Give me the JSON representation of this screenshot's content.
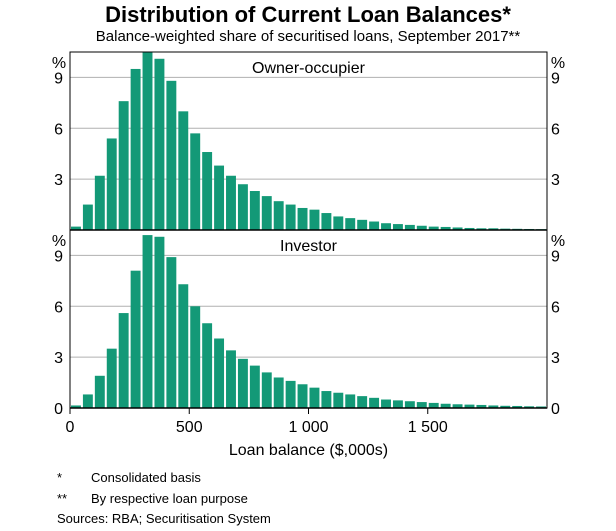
{
  "title": "Distribution of Current Loan Balances*",
  "subtitle": "Balance-weighted share of securitised loans, September 2017**",
  "chart_data": [
    {
      "type": "bar",
      "title": "Owner-occupier",
      "ylabel": "%",
      "xlabel": "Loan balance ($,000s)",
      "ylim": [
        0,
        10.5
      ],
      "yticks": [
        "3",
        "6",
        "9"
      ],
      "xlim": [
        0,
        2000
      ],
      "xticks": [
        "0",
        "500",
        "1 000",
        "1 500"
      ],
      "bin_width": 50,
      "x": [
        25,
        75,
        125,
        175,
        225,
        275,
        325,
        375,
        425,
        475,
        525,
        575,
        625,
        675,
        725,
        775,
        825,
        875,
        925,
        975,
        1025,
        1075,
        1125,
        1175,
        1225,
        1275,
        1325,
        1375,
        1425,
        1475,
        1525,
        1575,
        1625,
        1675,
        1725,
        1775,
        1825,
        1875,
        1925,
        1975
      ],
      "values": [
        0.2,
        1.5,
        3.2,
        5.4,
        7.6,
        9.5,
        10.5,
        10.1,
        8.8,
        7.0,
        5.7,
        4.6,
        3.8,
        3.2,
        2.7,
        2.3,
        2.0,
        1.7,
        1.5,
        1.3,
        1.2,
        1.0,
        0.8,
        0.7,
        0.6,
        0.5,
        0.4,
        0.35,
        0.3,
        0.25,
        0.2,
        0.18,
        0.15,
        0.12,
        0.1,
        0.1,
        0.08,
        0.07,
        0.06,
        0.05
      ]
    },
    {
      "type": "bar",
      "title": "Investor",
      "ylabel": "%",
      "xlabel": "Loan balance ($,000s)",
      "ylim": [
        0,
        10.5
      ],
      "yticks": [
        "0",
        "3",
        "6",
        "9"
      ],
      "xlim": [
        0,
        2000
      ],
      "xticks": [
        "0",
        "500",
        "1 000",
        "1 500"
      ],
      "bin_width": 50,
      "x": [
        25,
        75,
        125,
        175,
        225,
        275,
        325,
        375,
        425,
        475,
        525,
        575,
        625,
        675,
        725,
        775,
        825,
        875,
        925,
        975,
        1025,
        1075,
        1125,
        1175,
        1225,
        1275,
        1325,
        1375,
        1425,
        1475,
        1525,
        1575,
        1625,
        1675,
        1725,
        1775,
        1825,
        1875,
        1925,
        1975
      ],
      "values": [
        0.15,
        0.8,
        1.9,
        3.5,
        5.6,
        8.1,
        10.2,
        10.1,
        8.9,
        7.3,
        6.0,
        5.0,
        4.1,
        3.4,
        2.9,
        2.5,
        2.1,
        1.8,
        1.6,
        1.4,
        1.2,
        1.0,
        0.9,
        0.8,
        0.7,
        0.6,
        0.5,
        0.45,
        0.4,
        0.35,
        0.3,
        0.25,
        0.22,
        0.2,
        0.18,
        0.15,
        0.13,
        0.12,
        0.1,
        0.09
      ]
    }
  ],
  "colors": {
    "bar": "#139977",
    "grid": "#b0b0b0",
    "axis": "#000000"
  },
  "notes": [
    {
      "mark": "*",
      "text": "Consolidated basis"
    },
    {
      "mark": "**",
      "text": "By respective loan purpose"
    }
  ],
  "sources": "Sources:  RBA; Securitisation System"
}
